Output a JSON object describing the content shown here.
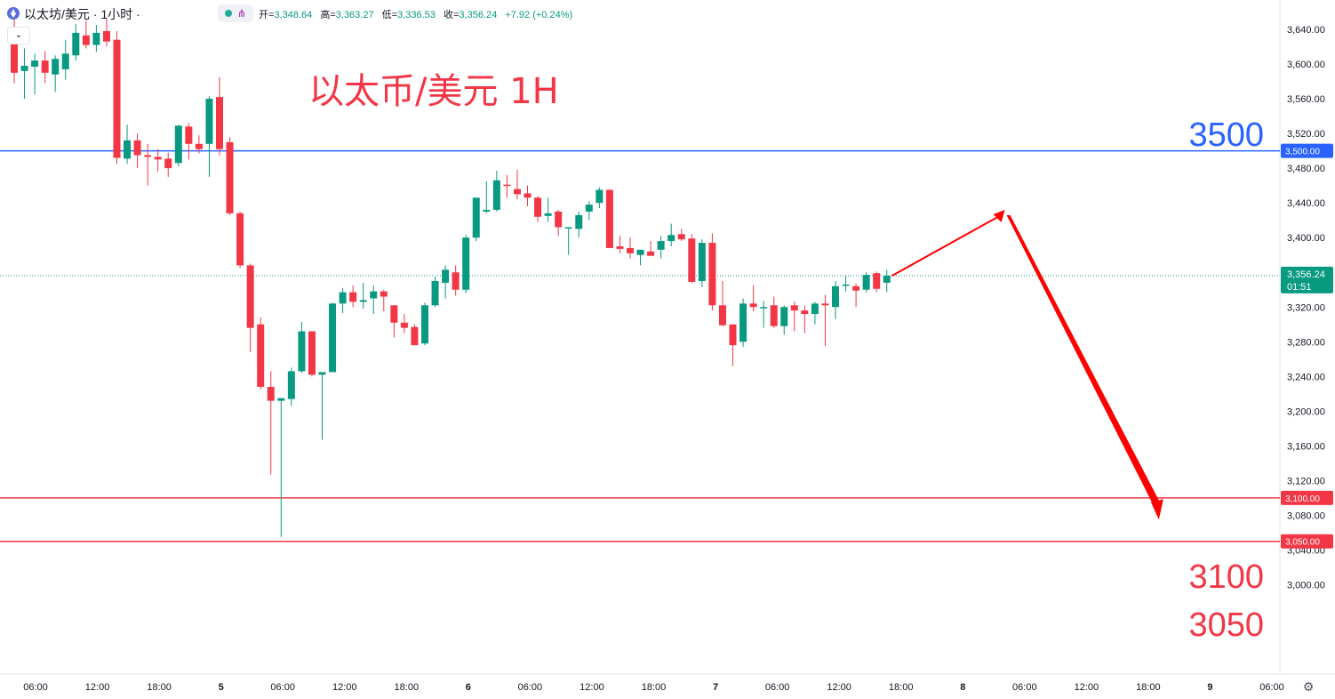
{
  "header": {
    "symbol": "以太坊/美元",
    "interval": "1小时",
    "open_label": "开=",
    "open": "3,348.64",
    "high_label": "高=",
    "high": "3,363.27",
    "low_label": "低=",
    "low": "3,336.53",
    "close_label": "收=",
    "close": "3,356.24",
    "change": "+7.92 (+0.24%)"
  },
  "annotations": {
    "title": "以太币/美元 1H",
    "level_3500": "3500",
    "level_3100": "3100",
    "level_3050": "3050"
  },
  "colors": {
    "up": "#089981",
    "down": "#f23645",
    "blue_line": "#2962ff",
    "red_line": "#f23645",
    "arrow": "#ff0000"
  },
  "chart_data": {
    "type": "candlestick",
    "title": "以太币/美元 1H",
    "ylim": [
      2980,
      3660
    ],
    "y_ticks": [
      3000,
      3040,
      3080,
      3120,
      3160,
      3200,
      3240,
      3280,
      3320,
      3360,
      3400,
      3440,
      3480,
      3520,
      3560,
      3600,
      3640
    ],
    "y_tick_labels": [
      "3,000.00",
      "3,040.00",
      "3,080.00",
      "3,120.00",
      "3,160.00",
      "3,200.00",
      "3,240.00",
      "3,280.00",
      "3,320.00",
      "3,360.00",
      "3,400.00",
      "3,440.00",
      "3,480.00",
      "3,520.00",
      "3,560.00",
      "3,600.00",
      "3,640.00"
    ],
    "x_ticks": [
      "06:00",
      "12:00",
      "18:00",
      "5",
      "06:00",
      "12:00",
      "18:00",
      "6",
      "06:00",
      "12:00",
      "18:00",
      "7",
      "06:00",
      "12:00",
      "18:00",
      "8",
      "06:00",
      "12:00",
      "18:00",
      "9",
      "06:00"
    ],
    "x_tick_bold": [
      false,
      false,
      false,
      true,
      false,
      false,
      false,
      true,
      false,
      false,
      false,
      true,
      false,
      false,
      false,
      true,
      false,
      false,
      false,
      true,
      false
    ],
    "candles": [
      [
        3638,
        3652,
        3578,
        3590
      ],
      [
        3592,
        3618,
        3560,
        3598
      ],
      [
        3597,
        3612,
        3565,
        3604
      ],
      [
        3604,
        3615,
        3578,
        3590
      ],
      [
        3588,
        3610,
        3568,
        3606
      ],
      [
        3594,
        3628,
        3582,
        3612
      ],
      [
        3610,
        3646,
        3604,
        3636
      ],
      [
        3633,
        3650,
        3618,
        3622
      ],
      [
        3622,
        3645,
        3614,
        3636
      ],
      [
        3638,
        3652,
        3620,
        3626
      ],
      [
        3628,
        3638,
        3485,
        3492
      ],
      [
        3491,
        3530,
        3485,
        3512
      ],
      [
        3512,
        3520,
        3480,
        3495
      ],
      [
        3495,
        3508,
        3460,
        3493
      ],
      [
        3493,
        3502,
        3476,
        3490
      ],
      [
        3491,
        3498,
        3470,
        3480
      ],
      [
        3486,
        3530,
        3482,
        3529
      ],
      [
        3528,
        3532,
        3490,
        3508
      ],
      [
        3508,
        3518,
        3497,
        3502
      ],
      [
        3508,
        3563,
        3470,
        3560
      ],
      [
        3562,
        3585,
        3495,
        3502
      ],
      [
        3510,
        3516,
        3426,
        3428
      ],
      [
        3428,
        3430,
        3365,
        3368
      ],
      [
        3368,
        3370,
        3268,
        3296
      ],
      [
        3300,
        3308,
        3225,
        3228
      ],
      [
        3228,
        3246,
        3127,
        3212
      ],
      [
        3212,
        3215,
        3055,
        3215
      ],
      [
        3214,
        3250,
        3206,
        3246
      ],
      [
        3246,
        3303,
        3244,
        3292
      ],
      [
        3292,
        3292,
        3240,
        3242
      ],
      [
        3242,
        3244,
        3167,
        3245
      ],
      [
        3245,
        3325,
        3245,
        3324
      ],
      [
        3324,
        3342,
        3313,
        3337
      ],
      [
        3337,
        3345,
        3320,
        3326
      ],
      [
        3326,
        3348,
        3318,
        3328
      ],
      [
        3330,
        3345,
        3312,
        3338
      ],
      [
        3338,
        3340,
        3315,
        3332
      ],
      [
        3322,
        3322,
        3285,
        3302
      ],
      [
        3302,
        3312,
        3290,
        3296
      ],
      [
        3297,
        3300,
        3276,
        3276
      ],
      [
        3278,
        3325,
        3276,
        3322
      ],
      [
        3322,
        3355,
        3320,
        3350
      ],
      [
        3348,
        3368,
        3330,
        3363
      ],
      [
        3360,
        3368,
        3333,
        3340
      ],
      [
        3340,
        3403,
        3336,
        3400
      ],
      [
        3400,
        3446,
        3396,
        3446
      ],
      [
        3430,
        3465,
        3428,
        3432
      ],
      [
        3432,
        3477,
        3430,
        3466
      ],
      [
        3461,
        3472,
        3446,
        3460
      ],
      [
        3456,
        3478,
        3444,
        3450
      ],
      [
        3451,
        3460,
        3436,
        3446
      ],
      [
        3446,
        3448,
        3418,
        3424
      ],
      [
        3425,
        3446,
        3418,
        3428
      ],
      [
        3430,
        3432,
        3402,
        3412
      ],
      [
        3412,
        3412,
        3380,
        3412
      ],
      [
        3410,
        3430,
        3400,
        3426
      ],
      [
        3430,
        3442,
        3420,
        3438
      ],
      [
        3440,
        3458,
        3434,
        3455
      ],
      [
        3455,
        3456,
        3388,
        3388
      ],
      [
        3390,
        3402,
        3382,
        3387
      ],
      [
        3388,
        3400,
        3376,
        3382
      ],
      [
        3380,
        3386,
        3368,
        3386
      ],
      [
        3384,
        3396,
        3380,
        3379
      ],
      [
        3386,
        3402,
        3376,
        3396
      ],
      [
        3396,
        3416,
        3390,
        3403
      ],
      [
        3404,
        3410,
        3396,
        3398
      ],
      [
        3399,
        3404,
        3348,
        3349
      ],
      [
        3350,
        3398,
        3343,
        3394
      ],
      [
        3394,
        3405,
        3316,
        3322
      ],
      [
        3322,
        3350,
        3298,
        3299
      ],
      [
        3300,
        3300,
        3252,
        3276
      ],
      [
        3280,
        3330,
        3274,
        3324
      ],
      [
        3324,
        3345,
        3315,
        3320
      ],
      [
        3320,
        3327,
        3296,
        3320
      ],
      [
        3322,
        3332,
        3296,
        3298
      ],
      [
        3298,
        3322,
        3288,
        3320
      ],
      [
        3322,
        3326,
        3292,
        3316
      ],
      [
        3316,
        3322,
        3290,
        3312
      ],
      [
        3312,
        3326,
        3300,
        3324
      ],
      [
        3324,
        3334,
        3275,
        3322
      ],
      [
        3320,
        3350,
        3306,
        3344
      ],
      [
        3345,
        3356,
        3338,
        3346
      ],
      [
        3344,
        3347,
        3320,
        3339
      ],
      [
        3340,
        3360,
        3337,
        3357
      ],
      [
        3359,
        3361,
        3337,
        3341
      ],
      [
        3348,
        3363,
        3337,
        3356
      ]
    ],
    "horizontal_lines": [
      {
        "value": 3500,
        "label": "3,500.00",
        "color": "#2962ff"
      },
      {
        "value": 3100,
        "label": "3,100.00",
        "color": "#f23645"
      },
      {
        "value": 3050,
        "label": "3,050.00",
        "color": "#f23645"
      }
    ],
    "last_price": {
      "value": 3356.24,
      "label": "3,356.24",
      "countdown": "01:51",
      "color": "#089981"
    },
    "projection_path": {
      "start": {
        "time_index": 85.5,
        "price": 3356
      },
      "peak": {
        "time_index": 96.5,
        "price": 3432
      },
      "end": {
        "time_index": 111.5,
        "price": 3075
      }
    },
    "grid": false,
    "legend": "none"
  }
}
